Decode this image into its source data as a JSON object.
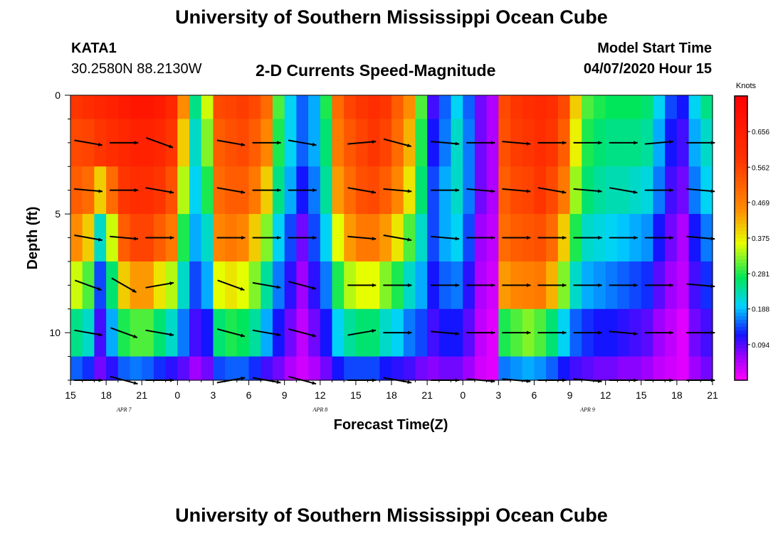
{
  "header": {
    "title": "University of Southern Mississippi Ocean Cube",
    "station": "KATA1",
    "coords": "30.2580N 88.2130W",
    "plot_title": "2-D Currents Speed-Magnitude",
    "start_label": "Model Start Time",
    "start_value": "04/07/2020 Hour 15"
  },
  "footer": {
    "title": "University of Southern Mississippi Ocean Cube"
  },
  "chart_data": {
    "type": "heatmap",
    "title": "2-D Currents Speed-Magnitude",
    "xlabel": "Forecast Time(Z)",
    "ylabel": "Depth (ft)",
    "x_range_hours": [
      0,
      54
    ],
    "y_range_ft": [
      0,
      12
    ],
    "y_ticks": [
      0,
      5,
      10
    ],
    "x_tick_labels": [
      "15",
      "18",
      "21",
      "0",
      "3",
      "6",
      "9",
      "12",
      "15",
      "18",
      "21",
      "0",
      "3",
      "6",
      "9",
      "12",
      "15",
      "18",
      "21"
    ],
    "date_labels": [
      {
        "text": "APR 7",
        "hour": 4.5
      },
      {
        "text": "APR 8",
        "hour": 21
      },
      {
        "text": "APR 9",
        "hour": 43.5
      }
    ],
    "colorbar": {
      "unit": "Knots",
      "min": 0.0,
      "max": 0.75,
      "tick_labels": [
        "0.656",
        "0.562",
        "0.469",
        "0.375",
        "0.281",
        "0.188",
        "0.094"
      ],
      "tick_values": [
        0.656,
        0.562,
        0.469,
        0.375,
        0.281,
        0.188,
        0.094
      ]
    },
    "depths_ft": [
      0,
      2,
      4,
      6,
      8,
      10,
      12
    ],
    "time_columns_hours": [
      0,
      1,
      2,
      3,
      4,
      5,
      6,
      7,
      8,
      9,
      10,
      11,
      12,
      13,
      14,
      15,
      16,
      17,
      18,
      19,
      20,
      21,
      22,
      23,
      24,
      25,
      26,
      27,
      28,
      29,
      30,
      31,
      32,
      33,
      34,
      35,
      36,
      37,
      38,
      39,
      40,
      41,
      42,
      43,
      44,
      45,
      46,
      47,
      48,
      49,
      50,
      51,
      52,
      53
    ],
    "speed_knots": [
      [
        0.58,
        0.6,
        0.62,
        0.64,
        0.66,
        0.68,
        0.68,
        0.66,
        0.62,
        0.45,
        0.25,
        0.35,
        0.55,
        0.56,
        0.57,
        0.55,
        0.5,
        0.3,
        0.2,
        0.15,
        0.18,
        0.28,
        0.5,
        0.56,
        0.58,
        0.6,
        0.58,
        0.52,
        0.45,
        0.3,
        0.1,
        0.15,
        0.2,
        0.15,
        0.08,
        0.05,
        0.55,
        0.58,
        0.6,
        0.61,
        0.6,
        0.55,
        0.4,
        0.3,
        0.28,
        0.27,
        0.27,
        0.27,
        0.26,
        0.2,
        0.14,
        0.12,
        0.2,
        0.25
      ],
      [
        0.55,
        0.56,
        0.58,
        0.6,
        0.62,
        0.64,
        0.64,
        0.62,
        0.58,
        0.4,
        0.22,
        0.32,
        0.52,
        0.54,
        0.55,
        0.52,
        0.46,
        0.28,
        0.2,
        0.15,
        0.18,
        0.26,
        0.48,
        0.53,
        0.56,
        0.58,
        0.56,
        0.5,
        0.42,
        0.28,
        0.12,
        0.16,
        0.22,
        0.16,
        0.08,
        0.05,
        0.54,
        0.57,
        0.58,
        0.6,
        0.58,
        0.52,
        0.37,
        0.28,
        0.26,
        0.25,
        0.25,
        0.25,
        0.24,
        0.18,
        0.12,
        0.1,
        0.18,
        0.22
      ],
      [
        0.52,
        0.5,
        0.4,
        0.5,
        0.58,
        0.6,
        0.6,
        0.58,
        0.54,
        0.34,
        0.2,
        0.28,
        0.5,
        0.52,
        0.52,
        0.48,
        0.4,
        0.25,
        0.18,
        0.12,
        0.16,
        0.24,
        0.44,
        0.5,
        0.54,
        0.55,
        0.52,
        0.46,
        0.38,
        0.26,
        0.14,
        0.18,
        0.22,
        0.16,
        0.08,
        0.05,
        0.52,
        0.55,
        0.56,
        0.58,
        0.55,
        0.48,
        0.33,
        0.26,
        0.24,
        0.23,
        0.23,
        0.22,
        0.21,
        0.16,
        0.1,
        0.08,
        0.16,
        0.2
      ],
      [
        0.45,
        0.4,
        0.22,
        0.35,
        0.52,
        0.56,
        0.56,
        0.52,
        0.48,
        0.28,
        0.18,
        0.22,
        0.46,
        0.48,
        0.46,
        0.4,
        0.32,
        0.2,
        0.14,
        0.08,
        0.14,
        0.2,
        0.36,
        0.44,
        0.48,
        0.48,
        0.44,
        0.38,
        0.3,
        0.22,
        0.14,
        0.18,
        0.2,
        0.14,
        0.06,
        0.04,
        0.5,
        0.52,
        0.53,
        0.54,
        0.5,
        0.4,
        0.28,
        0.22,
        0.21,
        0.2,
        0.19,
        0.18,
        0.17,
        0.12,
        0.08,
        0.05,
        0.12,
        0.16
      ],
      [
        0.35,
        0.3,
        0.14,
        0.26,
        0.4,
        0.44,
        0.44,
        0.38,
        0.34,
        0.22,
        0.14,
        0.18,
        0.36,
        0.38,
        0.36,
        0.32,
        0.24,
        0.16,
        0.11,
        0.06,
        0.11,
        0.16,
        0.28,
        0.34,
        0.36,
        0.36,
        0.32,
        0.28,
        0.22,
        0.18,
        0.12,
        0.15,
        0.16,
        0.11,
        0.05,
        0.03,
        0.44,
        0.46,
        0.47,
        0.48,
        0.42,
        0.32,
        0.22,
        0.18,
        0.17,
        0.16,
        0.15,
        0.14,
        0.13,
        0.09,
        0.06,
        0.04,
        0.1,
        0.13
      ],
      [
        0.25,
        0.22,
        0.1,
        0.18,
        0.28,
        0.3,
        0.3,
        0.26,
        0.22,
        0.16,
        0.1,
        0.12,
        0.26,
        0.28,
        0.27,
        0.24,
        0.18,
        0.12,
        0.08,
        0.04,
        0.08,
        0.12,
        0.2,
        0.24,
        0.26,
        0.26,
        0.22,
        0.2,
        0.16,
        0.14,
        0.1,
        0.12,
        0.12,
        0.09,
        0.04,
        0.02,
        0.28,
        0.3,
        0.32,
        0.3,
        0.26,
        0.2,
        0.15,
        0.13,
        0.12,
        0.12,
        0.11,
        0.1,
        0.09,
        0.06,
        0.04,
        0.02,
        0.08,
        0.1
      ],
      [
        0.15,
        0.13,
        0.08,
        0.11,
        0.15,
        0.16,
        0.15,
        0.13,
        0.11,
        0.09,
        0.06,
        0.08,
        0.14,
        0.15,
        0.15,
        0.13,
        0.1,
        0.08,
        0.05,
        0.03,
        0.05,
        0.08,
        0.12,
        0.14,
        0.14,
        0.14,
        0.12,
        0.11,
        0.1,
        0.08,
        0.07,
        0.08,
        0.08,
        0.06,
        0.03,
        0.02,
        0.16,
        0.17,
        0.18,
        0.17,
        0.15,
        0.12,
        0.1,
        0.09,
        0.08,
        0.08,
        0.07,
        0.07,
        0.06,
        0.04,
        0.03,
        0.02,
        0.06,
        0.08
      ]
    ],
    "vector_times_hours": [
      1.5,
      4.5,
      7.5,
      13.5,
      16.5,
      19.5,
      24.5,
      27.5,
      31.5,
      34.5,
      37.5,
      40.5,
      43.5,
      46.5,
      49.5,
      53
    ],
    "vector_angles_deg": [
      [
        10,
        0,
        20,
        10,
        0,
        10,
        -5,
        15,
        5,
        0,
        5,
        0,
        0,
        0,
        -5,
        0
      ],
      [
        5,
        0,
        10,
        10,
        0,
        0,
        10,
        5,
        0,
        5,
        5,
        10,
        5,
        10,
        0,
        5
      ],
      [
        10,
        5,
        0,
        0,
        0,
        0,
        5,
        10,
        5,
        0,
        0,
        0,
        0,
        0,
        0,
        5
      ],
      [
        20,
        30,
        -10,
        20,
        10,
        15,
        0,
        0,
        0,
        0,
        0,
        0,
        0,
        0,
        0,
        5
      ],
      [
        10,
        20,
        10,
        15,
        10,
        15,
        -10,
        0,
        5,
        0,
        0,
        0,
        0,
        5,
        0,
        0
      ],
      [
        0,
        15,
        0,
        -10,
        10,
        15,
        0,
        10,
        0,
        5,
        5,
        0,
        5,
        0,
        0,
        0
      ]
    ],
    "vector_depths_ft": [
      2,
      4,
      6,
      8,
      10,
      12
    ]
  }
}
